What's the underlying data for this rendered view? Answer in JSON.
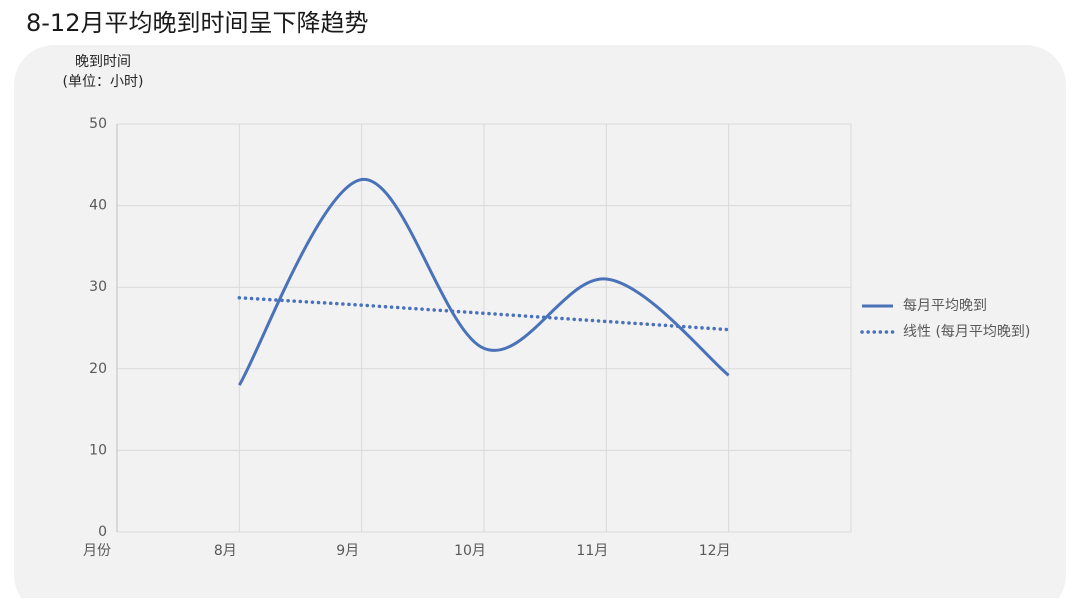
{
  "chart_data": {
    "type": "line",
    "title": "8-12月平均晚到时间呈下降趋势",
    "y_label": "晚到时间",
    "y_unit": "(单位：小时)",
    "x_label": "月份",
    "categories": [
      "8月",
      "9月",
      "10月",
      "11月",
      "12月"
    ],
    "series": [
      {
        "name": "每月平均晚到",
        "color": "#4a72b8",
        "style": "smooth",
        "values": [
          18,
          43.2,
          22.5,
          31,
          19.2
        ]
      },
      {
        "name": "线性 (每月平均晚到)",
        "color": "#4a72b8",
        "style": "dotted",
        "values": [
          28.7,
          27.8,
          26.8,
          25.8,
          24.8
        ]
      }
    ],
    "ylim": [
      0,
      50
    ],
    "yticks": [
      0,
      10,
      20,
      30,
      40,
      50
    ],
    "grid": true,
    "legend": "right"
  }
}
